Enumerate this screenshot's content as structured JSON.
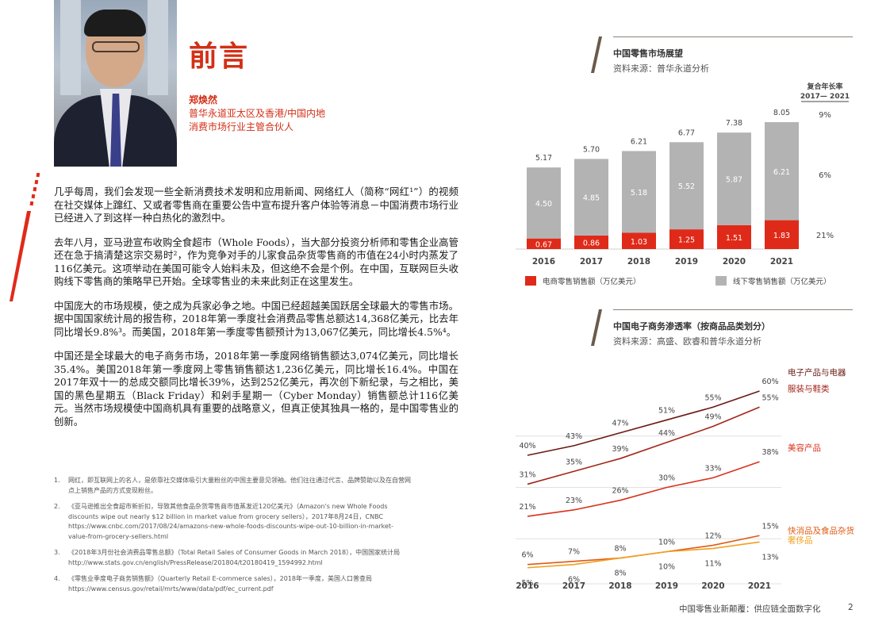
{
  "page": {
    "title": "前言",
    "author": {
      "name": "郑焕然",
      "role_line1": "普华永道亚太区及香港/中国内地",
      "role_line2": "消费市场行业主管合伙人"
    },
    "paragraphs": [
      "几乎每周，我们会发现一些全新消费技术发明和应用新闻、网络红人（简称“网红¹”）的视频在社交媒体上蹿红、又或者零售商在重要公告中宣布提升客户体验等消息－中国消费市场行业已经进入了到这样一种白热化的激烈中。",
      "去年八月，亚马逊宣布收购全食超市（Whole Foods），当大部分投资分析师和零售企业高管还在急于搞清楚这宗交易时²，作为竞争对手的儿家食品杂货零售商的市值在24小时内蒸发了116亿美元。这项举动在美国可能令人始料未及，但这绝不会是个例。在中国，互联网巨头收购线下零售商的策略早已开始。全球零售业的未来此刻正在这里发生。",
      "中国庞大的市场规模，使之成为兵家必争之地。中国已经超越美国跃居全球最大的零售市场。据中国国家统计局的报告称，2018年第一季度社会消费品零售总额达14,368亿美元，比去年同比增长9.8%³。而美国，2018年第一季度零售额预计为13,067亿美元，同比增长4.5%⁴。",
      "中国还是全球最大的电子商务市场，2018年第一季度网络销售额达3,074亿美元，同比增长35.4%。美国2018年第一季度网上零售销售额达1,236亿美元，同比增长16.4%。中国在2017年双十一的总成交额同比增长39%，达到252亿美元，再次创下新纪录，与之相比，美国的黑色星期五（Black Friday）和剁手星期一（Cyber Monday）销售额总计116亿美元。当然市场规模使中国商机具有重要的战略意义，但真正使其独具一格的，是中国零售业的创新。"
    ],
    "footnotes": [
      {
        "num": "1.",
        "text": "网红，即互联网上的名人，是依靠社交媒体吸引大量粉丝的中国主要意见领袖。他们往往通过代言、品牌赞助以及在自营网点上销售产品的方式变现粉丝。"
      },
      {
        "num": "2.",
        "text": "《亚马逊推出全食超市新折扣，导致其他食品杂货零售商市值蒸发近120亿美元》（Amazon's new Whole Foods discounts wipe out nearly $12 billion in market value from grocery sellers），2017年8月24日，CNBC https://www.cnbc.com/2017/08/24/amazons-new-whole-foods-discounts-wipe-out-10-billion-in-market-value-from-grocery-sellers.html"
      },
      {
        "num": "3.",
        "text": "《2018年3月份社会消费品零售总额》（Total Retail Sales of Consumer Goods in March 2018），中国国家统计局 http://www.stats.gov.cn/english/PressRelease/201804/t20180419_1594992.html"
      },
      {
        "num": "4.",
        "text": "《零售业季度电子商务销售额》（Quarterly Retail E-commerce sales），2018年一季度，美国人口普查局https://www.census.gov/retail/mrts/www/data/pdf/ec_current.pdf"
      }
    ],
    "footer": "中国零售业新颠覆：供应链全面数字化",
    "page_number": "2"
  },
  "colors": {
    "accent": "#d32f16",
    "bar_grey": "#b3b3b3",
    "bar_red": "#e02a19"
  },
  "chart_data": [
    {
      "type": "bar",
      "title": "中国零售市场展望",
      "source": "资料来源：普华永道分析",
      "categories": [
        "2016",
        "2017",
        "2018",
        "2019",
        "2020",
        "2021"
      ],
      "stacked": true,
      "series": [
        {
          "name": "电商零售销售额（万亿美元）",
          "values": [
            0.67,
            0.86,
            1.03,
            1.25,
            1.51,
            1.83
          ],
          "color": "#e02a19"
        },
        {
          "name": "线下零售销售额（万亿美元）",
          "values": [
            4.5,
            4.85,
            5.18,
            5.52,
            5.87,
            6.21
          ],
          "color": "#b3b3b3"
        }
      ],
      "totals": [
        "5.17",
        "5.70",
        "6.21",
        "6.77",
        "7.38",
        "8.05"
      ],
      "cagr_header": [
        "复合年长率",
        "2017— 2021"
      ],
      "cagr": [
        "9%",
        "6%",
        "21%"
      ],
      "legend_position": "bottom"
    },
    {
      "type": "line",
      "title": "中国电子商务渗透率（按商品品类划分）",
      "source": "资料来源：高盛、欧睿和普华永道分析",
      "x": [
        "2016",
        "2017",
        "2018",
        "2019",
        "2020",
        "2021"
      ],
      "ylim": [
        0,
        65
      ],
      "series": [
        {
          "name": "电子产品与电器",
          "values": [
            40,
            43,
            47,
            51,
            55,
            60
          ],
          "color": "#6b1a12"
        },
        {
          "name": "服装与鞋类",
          "values": [
            31,
            35,
            39,
            44,
            49,
            55
          ],
          "color": "#a3261a"
        },
        {
          "name": "美容产品",
          "values": [
            21,
            23,
            26,
            30,
            33,
            38
          ],
          "color": "#d8321c"
        },
        {
          "name": "快消品及食品杂货",
          "values": [
            6,
            7,
            8,
            10,
            12,
            15
          ],
          "color": "#e05a14"
        },
        {
          "name": "奢侈品",
          "values": [
            5,
            6,
            8,
            10,
            11,
            13
          ],
          "color": "#f0a020"
        }
      ],
      "labels_above": {
        "电子产品与电器": [
          "40%",
          "43%",
          "47%",
          "51%",
          "55%",
          "60%"
        ],
        "服装与鞋类": [
          "31%",
          "35%",
          "39%",
          "44%",
          "49%",
          "55%"
        ],
        "美容产品": [
          "21%",
          "23%",
          "26%",
          "30%",
          "33%",
          "38%"
        ],
        "快消品及食品杂货": [
          "6%",
          "7%",
          "8%",
          "10%",
          "12%",
          "15%"
        ],
        "奢侈品": [
          "5%",
          "6%",
          "8%",
          "10%",
          "11%",
          "13%"
        ]
      },
      "gridlines": true
    }
  ]
}
